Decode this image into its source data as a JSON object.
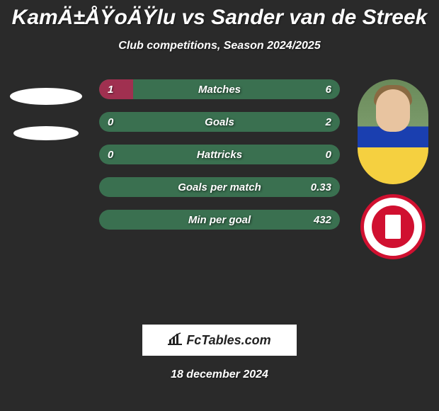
{
  "title": "KamÄ±ÅŸoÄŸlu vs Sander van de Streek",
  "subtitle": "Club competitions, Season 2024/2025",
  "colors": {
    "background": "#2a2a2a",
    "left_fill": "#a03050",
    "right_fill": "#3a7050",
    "text": "#ffffff"
  },
  "stats": [
    {
      "label": "Matches",
      "left_val": "1",
      "right_val": "6",
      "left_pct": 14,
      "right_pct": 86
    },
    {
      "label": "Goals",
      "left_val": "0",
      "right_val": "2",
      "left_pct": 0,
      "right_pct": 100
    },
    {
      "label": "Hattricks",
      "left_val": "0",
      "right_val": "0",
      "left_pct": 0,
      "right_pct": 100
    },
    {
      "label": "Goals per match",
      "left_val": "",
      "right_val": "0.33",
      "left_pct": 0,
      "right_pct": 100
    },
    {
      "label": "Min per goal",
      "left_val": "",
      "right_val": "432",
      "left_pct": 0,
      "right_pct": 100
    }
  ],
  "footer_brand": "FcTables.com",
  "footer_date": "18 december 2024"
}
